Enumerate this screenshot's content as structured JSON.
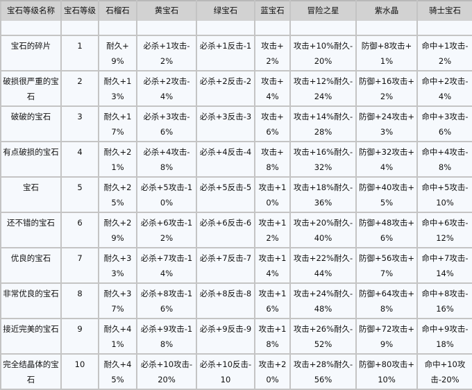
{
  "headers": [
    "宝石等级名称",
    "宝石等级",
    "石榴石",
    "黄宝石",
    "绿宝石",
    "蓝宝石",
    "冒险之星",
    "紫水晶",
    "骑士宝石"
  ],
  "rows": [
    [
      "宝石的碎片",
      "1",
      "耐久+9%",
      "必杀+1攻击-2%",
      "必杀+1反击-1",
      "攻击+2%",
      "攻击+10%耐久-20%",
      "防御+8攻击+1%",
      "命中+1攻击-2%"
    ],
    [
      "破损很严重的宝石",
      "2",
      "耐久+13%",
      "必杀+2攻击-4%",
      "必杀+2反击-2",
      "攻击+4%",
      "攻击+12%耐久-24%",
      "防御+16攻击+2%",
      "命中+2攻击-4%"
    ],
    [
      "破破的宝石",
      "3",
      "耐久+17%",
      "必杀+3攻击-6%",
      "必杀+3反击-3",
      "攻击+6%",
      "攻击+14%耐久-28%",
      "防御+24攻击+3%",
      "命中+3攻击-6%"
    ],
    [
      "有点破损的宝石",
      "4",
      "耐久+21%",
      "必杀+4攻击-8%",
      "必杀+4反击-4",
      "攻击+8%",
      "攻击+16%耐久-32%",
      "防御+32攻击+4%",
      "命中+4攻击-8%"
    ],
    [
      "宝石",
      "5",
      "耐久+25%",
      "必杀+5攻击-10%",
      "必杀+5反击-5",
      "攻击+10%",
      "攻击+18%耐久-36%",
      "防御+40攻击+5%",
      "命中+5攻击-10%"
    ],
    [
      "还不错的宝石",
      "6",
      "耐久+29%",
      "必杀+6攻击-12%",
      "必杀+6反击-6",
      "攻击+12%",
      "攻击+20%耐久-40%",
      "防御+48攻击+6%",
      "命中+6攻击-12%"
    ],
    [
      "优良的宝石",
      "7",
      "耐久+33%",
      "必杀+7攻击-14%",
      "必杀+7反击-7",
      "攻击+14%",
      "攻击+22%耐久-44%",
      "防御+56攻击+7%",
      "命中+7攻击-14%"
    ],
    [
      "非常优良的宝石",
      "8",
      "耐久+37%",
      "必杀+8攻击-16%",
      "必杀+8反击-8",
      "攻击+16%",
      "攻击+24%耐久-48%",
      "防御+64攻击+8%",
      "命中+8攻击-16%"
    ],
    [
      "接近完美的宝石",
      "9",
      "耐久+41%",
      "必杀+9攻击-18%",
      "必杀+9反击-9",
      "攻击+18%",
      "攻击+26%耐久-52%",
      "防御+72攻击+9%",
      "命中+9攻击-18%"
    ],
    [
      "完全结晶体的宝石",
      "10",
      "耐久+45%",
      "必杀+10攻击-20%",
      "必杀+10反击-10",
      "攻击+20%",
      "攻击+28%耐久-56%",
      "防御+80攻击+10%",
      "命中+10攻击-20%"
    ]
  ]
}
